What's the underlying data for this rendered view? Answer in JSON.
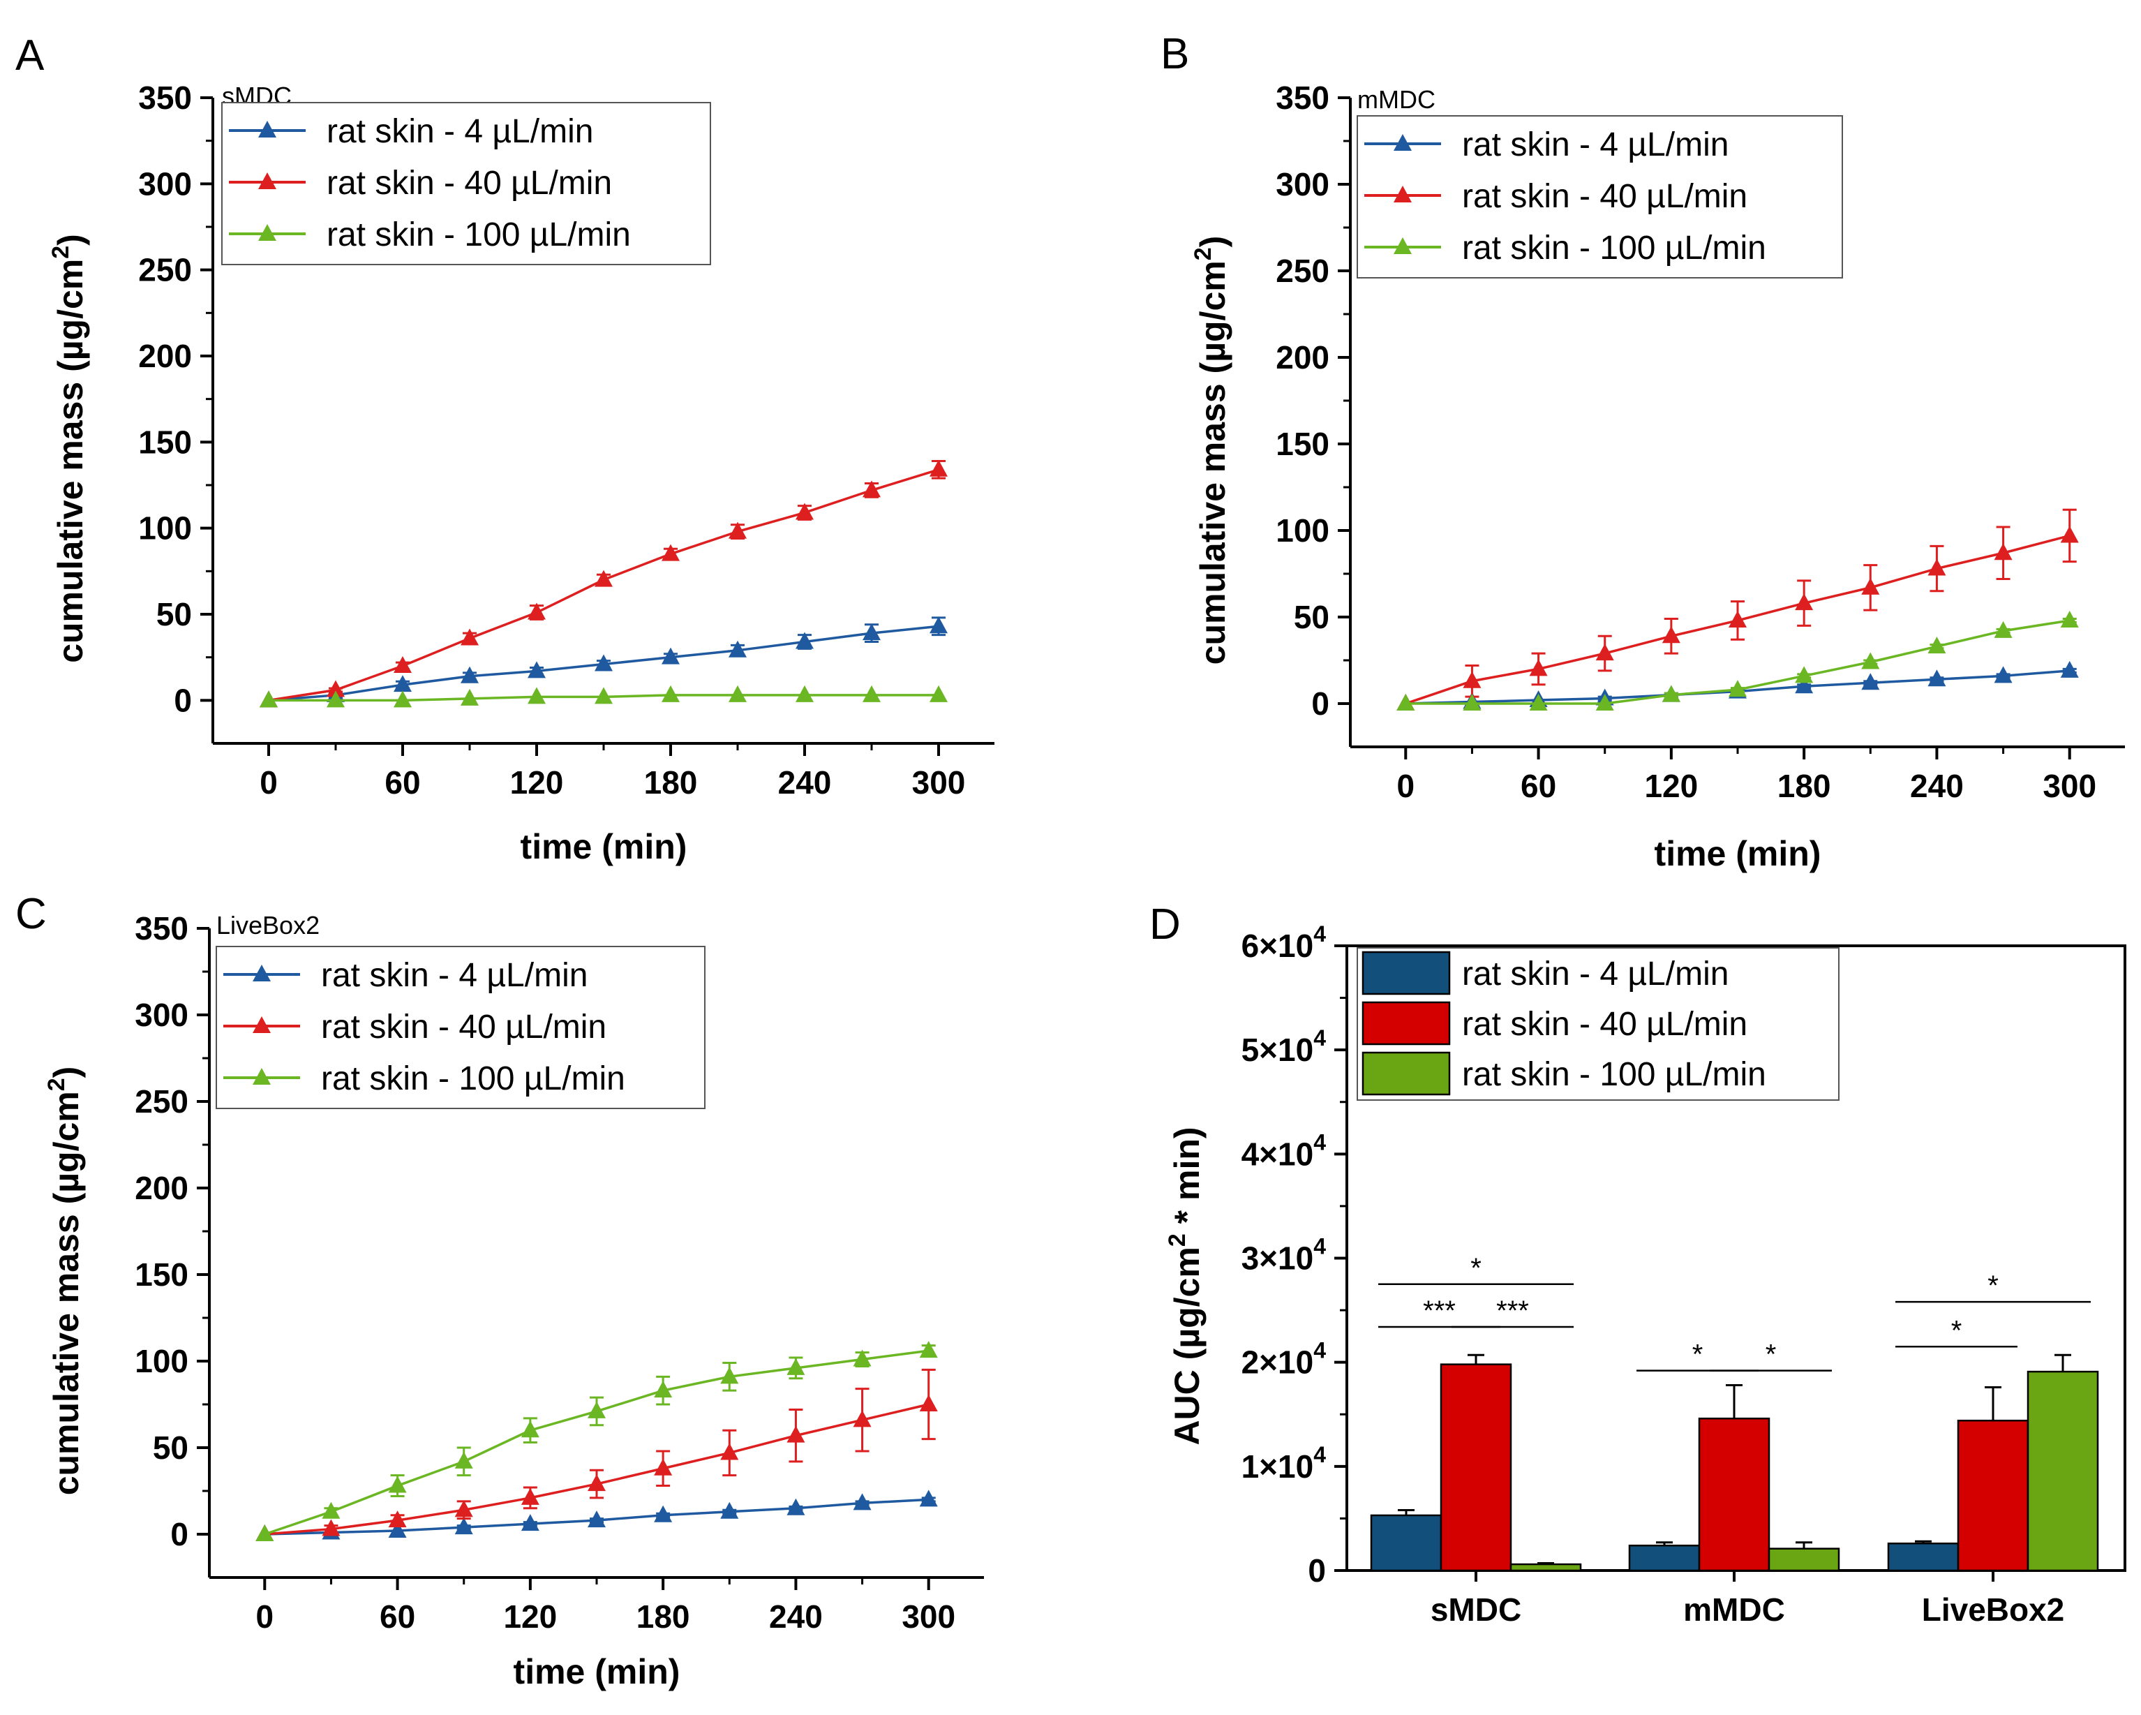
{
  "colors": {
    "blue": "#1f5aa0",
    "red": "#dd1f1f",
    "green": "#6bb623",
    "bar_blue": "#124f7a",
    "bar_red": "#d40000",
    "bar_green": "#6aa514",
    "axis": "#000000"
  },
  "chart_data": [
    {
      "panel": "A",
      "type": "line",
      "title": "sMDC",
      "xlabel": "time (min)",
      "ylabel": "cumulative mass (µg/cm²)",
      "ylabel_parts": [
        "cumulative mass (µg/cm",
        "2",
        ")"
      ],
      "xlim": [
        -25,
        325
      ],
      "ylim": [
        -25,
        350
      ],
      "xticks": [
        0,
        60,
        120,
        180,
        240,
        300
      ],
      "xtick_labels": [
        "0",
        "60",
        "120",
        "180",
        "240",
        "300"
      ],
      "yticks": [
        0,
        50,
        100,
        150,
        200,
        250,
        300,
        350
      ],
      "ytick_labels": [
        "0",
        "50",
        "100",
        "150",
        "200",
        "250",
        "300",
        "350"
      ],
      "legend_position": "top-left",
      "x": [
        0,
        30,
        60,
        90,
        120,
        150,
        180,
        210,
        240,
        270,
        300
      ],
      "series": [
        {
          "name": "rat skin - 4 µL/min",
          "color": "blue",
          "values": [
            0,
            3,
            9,
            14,
            17,
            21,
            25,
            29,
            34,
            39,
            43
          ],
          "errors": [
            0,
            1,
            2,
            2,
            2,
            2,
            2,
            3,
            4,
            5,
            5
          ]
        },
        {
          "name": "rat skin - 40 µL/min",
          "color": "red",
          "values": [
            0,
            6,
            20,
            36,
            51,
            70,
            85,
            98,
            109,
            122,
            134
          ],
          "errors": [
            0,
            1,
            2,
            3,
            4,
            3,
            3,
            4,
            4,
            4,
            5
          ]
        },
        {
          "name": "rat skin - 100 µL/min",
          "color": "green",
          "values": [
            0,
            0,
            0,
            1,
            2,
            2,
            3,
            3,
            3,
            3,
            3
          ],
          "errors": [
            0,
            0,
            0,
            0,
            0,
            0,
            0,
            0,
            0,
            0,
            0
          ]
        }
      ]
    },
    {
      "panel": "B",
      "type": "line",
      "title": "mMDC",
      "xlabel": "time (min)",
      "ylabel": "cumulative mass (µg/cm²)",
      "ylabel_parts": [
        "cumulative mass (µg/cm",
        "2",
        ")"
      ],
      "xlim": [
        -25,
        325
      ],
      "ylim": [
        -25,
        350
      ],
      "xticks": [
        0,
        60,
        120,
        180,
        240,
        300
      ],
      "xtick_labels": [
        "0",
        "60",
        "120",
        "180",
        "240",
        "300"
      ],
      "yticks": [
        0,
        50,
        100,
        150,
        200,
        250,
        300,
        350
      ],
      "ytick_labels": [
        "0",
        "50",
        "100",
        "150",
        "200",
        "250",
        "300",
        "350"
      ],
      "legend_position": "top-left",
      "x": [
        0,
        30,
        60,
        90,
        120,
        150,
        180,
        210,
        240,
        270,
        300
      ],
      "series": [
        {
          "name": "rat skin - 4 µL/min",
          "color": "blue",
          "values": [
            0,
            1,
            2,
            3,
            5,
            7,
            10,
            12,
            14,
            16,
            19
          ],
          "errors": [
            0,
            0,
            0,
            1,
            1,
            1,
            1,
            1,
            1,
            1,
            1
          ]
        },
        {
          "name": "rat skin - 40 µL/min",
          "color": "red",
          "values": [
            0,
            13,
            20,
            29,
            39,
            48,
            58,
            67,
            78,
            87,
            97
          ],
          "errors": [
            0,
            9,
            9,
            10,
            10,
            11,
            13,
            13,
            13,
            15,
            15
          ]
        },
        {
          "name": "rat skin - 100 µL/min",
          "color": "green",
          "values": [
            0,
            0,
            0,
            0,
            5,
            8,
            16,
            24,
            33,
            42,
            48
          ],
          "errors": [
            0,
            0,
            0,
            0,
            1,
            1,
            1,
            1,
            1,
            1,
            1
          ]
        }
      ]
    },
    {
      "panel": "C",
      "type": "line",
      "title": "LiveBox2",
      "xlabel": "time (min)",
      "ylabel": "cumulative mass (µg/cm²)",
      "ylabel_parts": [
        "cumulative mass (µg/cm",
        "2",
        ")"
      ],
      "xlim": [
        -25,
        325
      ],
      "ylim": [
        -25,
        350
      ],
      "xticks": [
        0,
        60,
        120,
        180,
        240,
        300
      ],
      "xtick_labels": [
        "0",
        "60",
        "120",
        "180",
        "240",
        "300"
      ],
      "yticks": [
        0,
        50,
        100,
        150,
        200,
        250,
        300,
        350
      ],
      "ytick_labels": [
        "0",
        "50",
        "100",
        "150",
        "200",
        "250",
        "300",
        "350"
      ],
      "legend_position": "top-left",
      "x": [
        0,
        30,
        60,
        90,
        120,
        150,
        180,
        210,
        240,
        270,
        300
      ],
      "series": [
        {
          "name": "rat skin - 4 µL/min",
          "color": "blue",
          "values": [
            0,
            1,
            2,
            4,
            6,
            8,
            11,
            13,
            15,
            18,
            20
          ],
          "errors": [
            0,
            0,
            0,
            1,
            1,
            1,
            1,
            1,
            1,
            1,
            1
          ]
        },
        {
          "name": "rat skin - 40 µL/min",
          "color": "red",
          "values": [
            0,
            3,
            8,
            14,
            21,
            29,
            38,
            47,
            57,
            66,
            75
          ],
          "errors": [
            0,
            2,
            3,
            5,
            6,
            8,
            10,
            13,
            15,
            18,
            20
          ]
        },
        {
          "name": "rat skin - 100 µL/min",
          "color": "green",
          "values": [
            0,
            13,
            28,
            42,
            60,
            71,
            83,
            91,
            96,
            101,
            106
          ],
          "errors": [
            0,
            2,
            6,
            8,
            7,
            8,
            8,
            8,
            6,
            4,
            3
          ]
        }
      ]
    },
    {
      "panel": "D",
      "type": "bar",
      "xlabel": "",
      "ylabel": "AUC (µg/cm² * min)",
      "ylabel_parts": [
        "AUC (µg/cm",
        "2",
        " * min)"
      ],
      "categories": [
        "sMDC",
        "mMDC",
        "LiveBox2"
      ],
      "ylim": [
        0,
        60000
      ],
      "yticks": [
        0,
        10000,
        20000,
        30000,
        40000,
        50000,
        60000
      ],
      "ytick_labels": [
        {
          "base": "0",
          "exp": ""
        },
        {
          "base": "1×10",
          "exp": "4"
        },
        {
          "base": "2×10",
          "exp": "4"
        },
        {
          "base": "3×10",
          "exp": "4"
        },
        {
          "base": "4×10",
          "exp": "4"
        },
        {
          "base": "5×10",
          "exp": "4"
        },
        {
          "base": "6×10",
          "exp": "4"
        }
      ],
      "legend_position": "top-left",
      "series": [
        {
          "name": "rat skin - 4 µL/min",
          "color": "bar_blue",
          "values": [
            5300,
            2400,
            2600
          ],
          "errors": [
            500,
            300,
            200
          ]
        },
        {
          "name": "rat skin - 40 µL/min",
          "color": "bar_red",
          "values": [
            19800,
            14600,
            14400
          ],
          "errors": [
            900,
            3200,
            3200
          ]
        },
        {
          "name": "rat skin - 100 µL/min",
          "color": "bar_green",
          "values": [
            600,
            2100,
            19100
          ],
          "errors": [
            100,
            600,
            1600
          ]
        }
      ],
      "significance": [
        {
          "category": 0,
          "from": 0,
          "to": 2,
          "label": "*",
          "level": 27500
        },
        {
          "category": 0,
          "from": 0,
          "to": 1,
          "label": "***",
          "level": 23400
        },
        {
          "category": 0,
          "from": 1,
          "to": 2,
          "label": "***",
          "level": 23400
        },
        {
          "category": 1,
          "from": 0,
          "to": 1,
          "label": "*",
          "level": 19200
        },
        {
          "category": 1,
          "from": 1,
          "to": 2,
          "label": "*",
          "level": 19200
        },
        {
          "category": 2,
          "from": 0,
          "to": 2,
          "label": "*",
          "level": 25800
        },
        {
          "category": 2,
          "from": 0,
          "to": 1,
          "label": "*",
          "level": 21500
        }
      ]
    }
  ]
}
